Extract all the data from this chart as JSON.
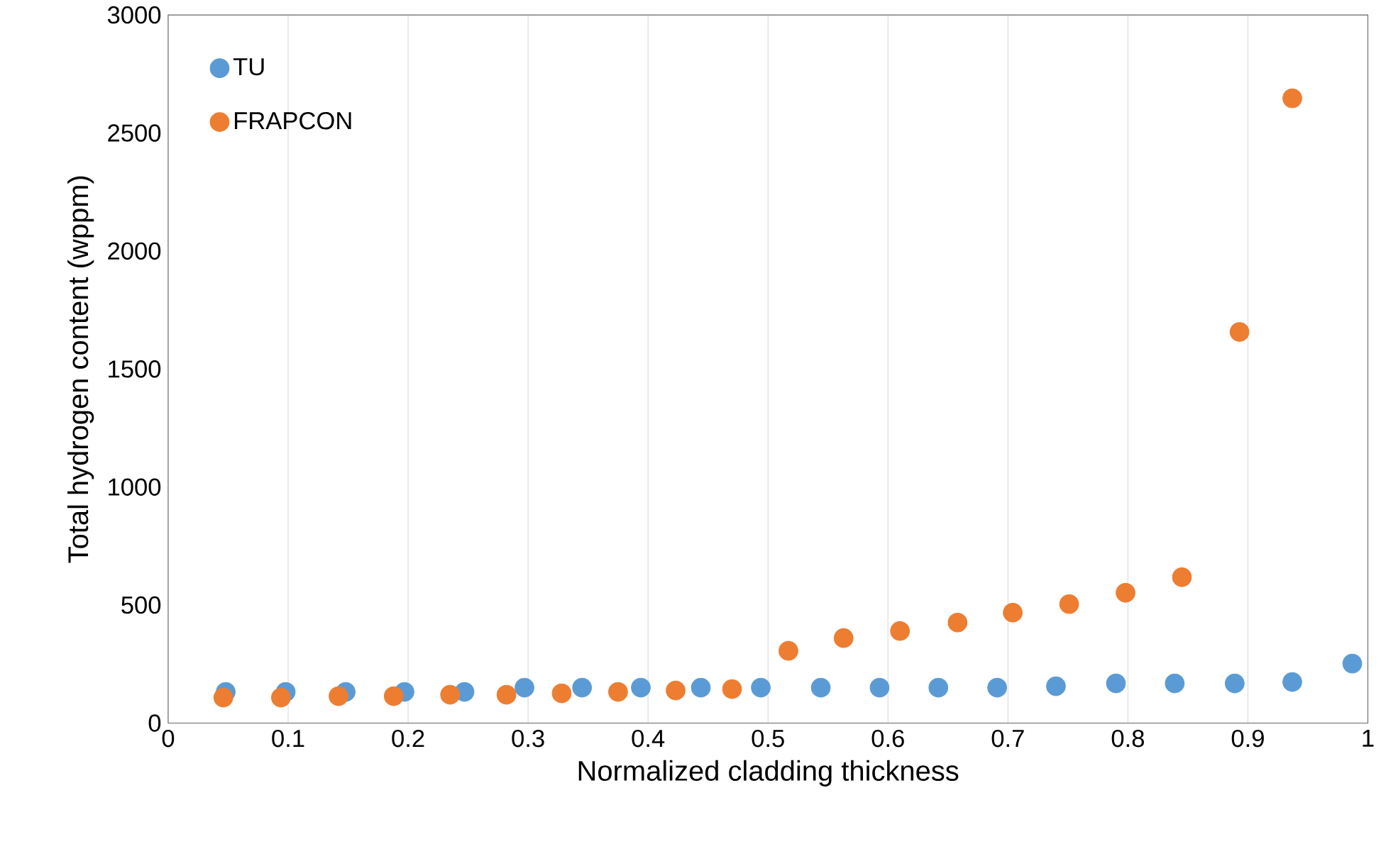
{
  "chart_data": {
    "type": "scatter",
    "xlabel": "Normalized cladding thickness",
    "ylabel": "Total hydrogen content (wppm)",
    "xlim": [
      0,
      1
    ],
    "ylim": [
      0,
      3000
    ],
    "xticks": [
      0,
      0.1,
      0.2,
      0.3,
      0.4,
      0.5,
      0.6,
      0.7,
      0.8,
      0.9,
      1
    ],
    "yticks": [
      0,
      500,
      1000,
      1500,
      2000,
      2500,
      3000
    ],
    "grid": "x",
    "legend": "top left",
    "marker": "circle",
    "series": [
      {
        "name": "TU",
        "color": "#5b9bd5",
        "x": [
          0.048,
          0.098,
          0.148,
          0.197,
          0.247,
          0.297,
          0.345,
          0.394,
          0.444,
          0.494,
          0.544,
          0.593,
          0.642,
          0.691,
          0.74,
          0.79,
          0.839,
          0.889,
          0.937,
          0.987
        ],
        "values": [
          132,
          132,
          132,
          132,
          132,
          150,
          150,
          150,
          150,
          150,
          150,
          150,
          150,
          150,
          156,
          168,
          168,
          168,
          174,
          252
        ]
      },
      {
        "name": "FRAPCON",
        "color": "#ed7d31",
        "x": [
          0.046,
          0.094,
          0.142,
          0.188,
          0.235,
          0.282,
          0.328,
          0.375,
          0.423,
          0.47,
          0.517,
          0.563,
          0.61,
          0.658,
          0.704,
          0.751,
          0.798,
          0.845,
          0.893,
          0.937
        ],
        "values": [
          108,
          108,
          114,
          114,
          120,
          120,
          126,
          132,
          138,
          144,
          306,
          360,
          390,
          426,
          468,
          504,
          552,
          618,
          1657,
          2647
        ]
      }
    ]
  }
}
